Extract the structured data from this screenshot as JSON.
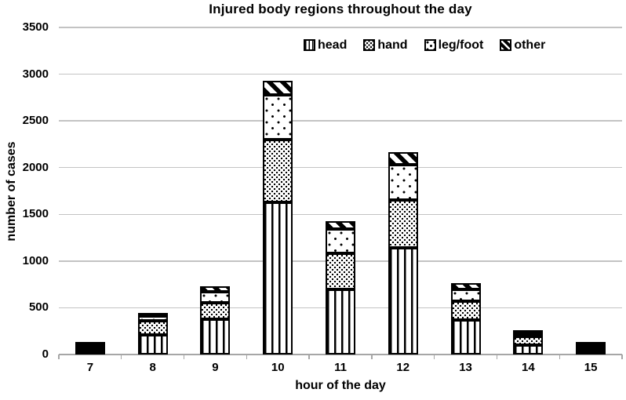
{
  "chart_data": {
    "type": "bar",
    "stacked": true,
    "title": "Injured body regions throughout the day",
    "xlabel": "hour of the day",
    "ylabel": "number of cases",
    "categories": [
      "7",
      "8",
      "9",
      "10",
      "11",
      "12",
      "13",
      "14",
      "15"
    ],
    "series": [
      {
        "name": "head",
        "pattern": "vertical-stripes",
        "values": [
          25,
          210,
          380,
          1630,
          700,
          1140,
          370,
          100,
          15
        ]
      },
      {
        "name": "hand",
        "pattern": "dense-dots",
        "values": [
          15,
          150,
          170,
          670,
          380,
          510,
          200,
          95,
          8
        ]
      },
      {
        "name": "leg/foot",
        "pattern": "sparse-dots",
        "values": [
          10,
          55,
          120,
          475,
          265,
          380,
          125,
          25,
          4
        ]
      },
      {
        "name": "other",
        "pattern": "diagonal-hatch",
        "values": [
          5,
          25,
          60,
          155,
          85,
          140,
          70,
          20,
          3
        ]
      }
    ],
    "totals": [
      55,
      440,
      730,
      2930,
      1430,
      2170,
      765,
      240,
      30
    ],
    "ylim": [
      0,
      3500
    ],
    "yticks": [
      0,
      500,
      1000,
      1500,
      2000,
      2500,
      3000,
      3500
    ],
    "grid": "horizontal",
    "legend_position": "inside-top-right",
    "colors": {
      "foreground": "#000000",
      "background": "#ffffff",
      "gridline": "#c3c3c3",
      "axis_line": "#a6a6a6"
    }
  }
}
